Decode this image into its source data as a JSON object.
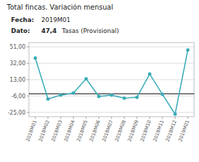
{
  "chart_data": {
    "type": "line",
    "title": "Total fincas. Variación mensual",
    "annotations": [
      "Fecha:",
      "2019M01",
      "Dato:",
      "47,4",
      "Tasas (Provisional)"
    ],
    "categories": [
      "2018M01",
      "2018M02",
      "2018M03",
      "2018M04",
      "2018M05",
      "2018M06",
      "2018M07",
      "2018M08",
      "2018M09",
      "2018M10",
      "2018M11",
      "2018M12",
      "2019M01"
    ],
    "values": [
      38.0,
      -9.5,
      -5.0,
      -2.5,
      14.0,
      -6.5,
      -5.0,
      -8.5,
      -7.5,
      19.5,
      -4.0,
      -27.0,
      47.4
    ],
    "color": "#3AACB8",
    "marker": "circle",
    "reference_line": {
      "value": -3.5,
      "color": "#000000"
    },
    "ylim": [
      -30,
      56
    ],
    "yticks": [
      {
        "value": -25.0,
        "label": "-25,00"
      },
      {
        "value": -6.0,
        "label": "-6,00"
      },
      {
        "value": 13.0,
        "label": "13,00"
      },
      {
        "value": 32.0,
        "label": "32,00"
      },
      {
        "value": 51.0,
        "label": "51,00"
      }
    ],
    "grid": true
  }
}
